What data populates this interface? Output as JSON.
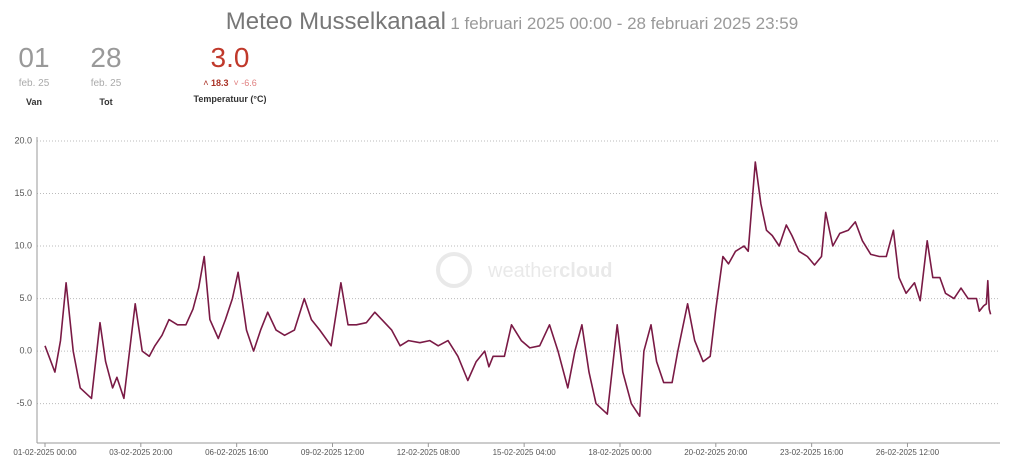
{
  "header": {
    "title": "Meteo Musselkanaal",
    "subtitle": "1 februari 2025 00:00 - 28 februari 2025 23:59",
    "stats": [
      {
        "value": "01",
        "sub": "feb. 25",
        "label": "Van"
      },
      {
        "value": "28",
        "sub": "feb. 25",
        "label": "Tot"
      },
      {
        "value": "3.0",
        "max": "18.3",
        "min": "-6.6",
        "label": "Temperatuur (°C)"
      }
    ]
  },
  "watermark": {
    "light": "weather",
    "bold": "cloud"
  },
  "chart_data": {
    "type": "line",
    "x": [
      "01-02-2025 00:00",
      "01-02-2025 07:00",
      "01-02-2025 11:00",
      "01-02-2025 15:00",
      "01-02-2025 20:00",
      "02-02-2025 01:00",
      "02-02-2025 09:00",
      "02-02-2025 15:00",
      "02-02-2025 19:00",
      "03-02-2025 00:00",
      "03-02-2025 03:00",
      "03-02-2025 08:00",
      "03-02-2025 16:00",
      "03-02-2025 21:00",
      "04-02-2025 02:00",
      "04-02-2025 06:00",
      "04-02-2025 11:00",
      "04-02-2025 16:00",
      "04-02-2025 22:00",
      "05-02-2025 04:00",
      "05-02-2025 09:00",
      "05-02-2025 13:00",
      "05-02-2025 17:00",
      "05-02-2025 21:00",
      "06-02-2025 03:00",
      "06-02-2025 08:00",
      "06-02-2025 13:00",
      "06-02-2025 17:00",
      "06-02-2025 23:00",
      "07-02-2025 04:00",
      "07-02-2025 09:00",
      "07-02-2025 14:00",
      "07-02-2025 20:00",
      "08-02-2025 02:00",
      "08-02-2025 09:00",
      "08-02-2025 16:00",
      "08-02-2025 21:00",
      "09-02-2025 03:00",
      "09-02-2025 11:00",
      "09-02-2025 18:00",
      "09-02-2025 23:00",
      "10-02-2025 05:00",
      "10-02-2025 12:00",
      "10-02-2025 18:00",
      "10-02-2025 23:00",
      "11-02-2025 06:00",
      "11-02-2025 12:00",
      "11-02-2025 18:00",
      "12-02-2025 02:00",
      "12-02-2025 09:00",
      "12-02-2025 15:00",
      "12-02-2025 22:00",
      "13-02-2025 05:00",
      "13-02-2025 12:00",
      "13-02-2025 18:00",
      "14-02-2025 00:00",
      "14-02-2025 03:00",
      "14-02-2025 06:00",
      "14-02-2025 14:00",
      "14-02-2025 19:00",
      "15-02-2025 02:00",
      "15-02-2025 08:00",
      "15-02-2025 15:00",
      "15-02-2025 22:00",
      "16-02-2025 04:00",
      "16-02-2025 11:00",
      "16-02-2025 16:00",
      "16-02-2025 21:00",
      "17-02-2025 02:00",
      "17-02-2025 07:00",
      "17-02-2025 15:00",
      "17-02-2025 22:00",
      "18-02-2025 02:00",
      "18-02-2025 08:00",
      "18-02-2025 14:00",
      "18-02-2025 17:00",
      "18-02-2025 22:00",
      "19-02-2025 02:00",
      "19-02-2025 07:00",
      "19-02-2025 13:00",
      "19-02-2025 17:00",
      "20-02-2025 00:00",
      "20-02-2025 05:00",
      "20-02-2025 11:00",
      "20-02-2025 16:00",
      "20-02-2025 20:00",
      "21-02-2025 01:00",
      "21-02-2025 05:00",
      "21-02-2025 10:00",
      "21-02-2025 16:00",
      "21-02-2025 19:00",
      "22-02-2025 00:00",
      "22-02-2025 04:00",
      "22-02-2025 08:00",
      "22-02-2025 12:00",
      "22-02-2025 17:00",
      "22-02-2025 22:00",
      "23-02-2025 02:00",
      "23-02-2025 07:00",
      "23-02-2025 13:00",
      "23-02-2025 18:00",
      "23-02-2025 23:00",
      "24-02-2025 02:00",
      "24-02-2025 07:00",
      "24-02-2025 12:00",
      "24-02-2025 18:00",
      "24-02-2025 23:00",
      "25-02-2025 04:00",
      "25-02-2025 10:00",
      "25-02-2025 16:00",
      "25-02-2025 21:00",
      "26-02-2025 02:00",
      "26-02-2025 06:00",
      "26-02-2025 11:00",
      "26-02-2025 17:00",
      "26-02-2025 21:00",
      "27-02-2025 02:00",
      "27-02-2025 06:00",
      "27-02-2025 11:00",
      "27-02-2025 15:00",
      "27-02-2025 21:00",
      "28-02-2025 02:00",
      "28-02-2025 07:00",
      "28-02-2025 13:00",
      "28-02-2025 15:00",
      "28-02-2025 18:00",
      "28-02-2025 20:00",
      "28-02-2025 21:00",
      "28-02-2025 22:00",
      "28-02-2025 23:00"
    ],
    "series": [
      {
        "name": "Temperatuur (°C)",
        "color": "#7a1a45",
        "values": [
          0.5,
          -2,
          1,
          6.5,
          0,
          -3.5,
          -4.5,
          2.7,
          -1,
          -3.5,
          -2.5,
          -4.5,
          4.5,
          0,
          -0.5,
          0.5,
          1.5,
          3,
          2.5,
          2.5,
          4,
          6,
          9,
          3,
          1.2,
          3,
          5,
          7.5,
          2,
          0,
          2,
          3.7,
          2,
          1.5,
          2,
          5,
          3,
          2,
          0.5,
          6.5,
          2.5,
          2.5,
          2.7,
          3.7,
          3,
          2,
          0.5,
          1,
          0.8,
          1,
          0.5,
          1,
          -0.5,
          -2.8,
          -1,
          0,
          -1.5,
          -0.5,
          -0.5,
          2.5,
          1,
          0.3,
          0.5,
          2.5,
          0,
          -3.5,
          0,
          2.5,
          -2,
          -5,
          -6,
          2.5,
          -2,
          -5,
          -6.2,
          0,
          2.5,
          -1,
          -3,
          -3,
          0,
          4.5,
          1,
          -1,
          -0.5,
          4,
          9,
          8.3,
          9.5,
          10,
          9.5,
          18,
          14,
          11.5,
          11,
          10,
          12,
          11,
          9.5,
          9,
          8.2,
          9,
          13.2,
          10,
          11.2,
          11.5,
          12.3,
          10.5,
          9.2,
          9,
          9,
          11.5,
          7,
          5.5,
          6.5,
          4.8,
          10.5,
          7,
          7,
          5.5,
          5,
          6,
          5,
          5,
          3.8,
          4.3,
          4.5,
          6.7,
          4,
          3.5
        ]
      }
    ],
    "xlim": [
      "01-02-2025 00:00",
      "28-02-2025 23:59"
    ],
    "xticks": [
      "01-02-2025 00:00",
      "03-02-2025 20:00",
      "06-02-2025 16:00",
      "09-02-2025 12:00",
      "12-02-2025 08:00",
      "15-02-2025 04:00",
      "18-02-2025 00:00",
      "20-02-2025 20:00",
      "23-02-2025 16:00",
      "26-02-2025 12:00"
    ],
    "ylim": [
      -8.75,
      20
    ],
    "yticks": [
      {
        "value": 20,
        "label": "20.0"
      },
      {
        "value": 15,
        "label": "15.0"
      },
      {
        "value": 10,
        "label": "10.0"
      },
      {
        "value": 5,
        "label": "5.0"
      },
      {
        "value": 0,
        "label": "0.0"
      },
      {
        "value": -5,
        "label": "-5.0"
      }
    ],
    "grid": true
  }
}
